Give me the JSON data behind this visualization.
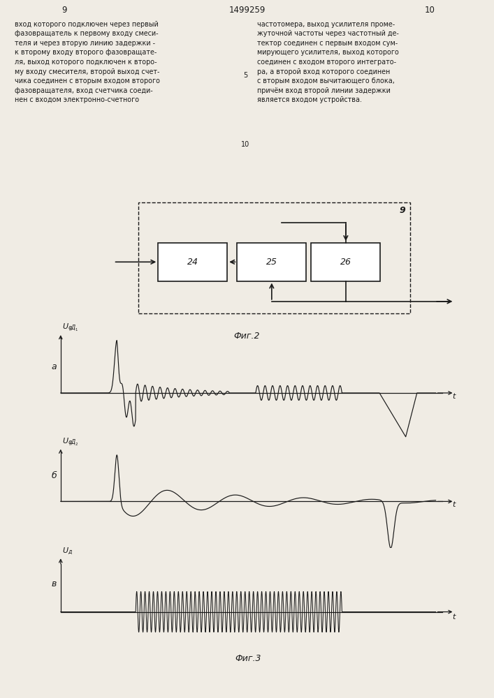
{
  "page_num_left": "9",
  "patent_num": "1499259",
  "page_num_right": "10",
  "text_left": "вход которого подключен через первый\nфазовращатель к первому входу смеси-\nтеля и через вторую линию задержки -\nк второму входу второго фазовращате-\nля, выход которого подключен к второ-\nму входу смесителя, второй выход счет-\nчика соединен с вторым входом второго\nфазовращателя, вход счетчика соеди-\nнен с входом электронно-счетного",
  "text_right": "частотомера, выход усилителя проме-\nжуточной частоты через частотный де-\nтектор соединен с первым входом сум-\nмирующего усилителя, выход которого\nсоединен с входом второго интеграто-\nра, а второй вход которого соединен\nс вторым входом вычитающего блока,\nпричём вход второй линии задержки\nявляется входом устройства.",
  "line_number_5": "5",
  "line_number_10": "10",
  "fig2_label": "Фиг.2",
  "fig3_label": "Фиг.3",
  "block_label_9": "9",
  "box_labels": [
    "24",
    "25",
    "26"
  ],
  "subplot_labels": [
    "а",
    "б",
    "в"
  ],
  "bg_color": "#f0ece4",
  "line_color": "#1a1a1a",
  "text_color": "#1a1a1a"
}
